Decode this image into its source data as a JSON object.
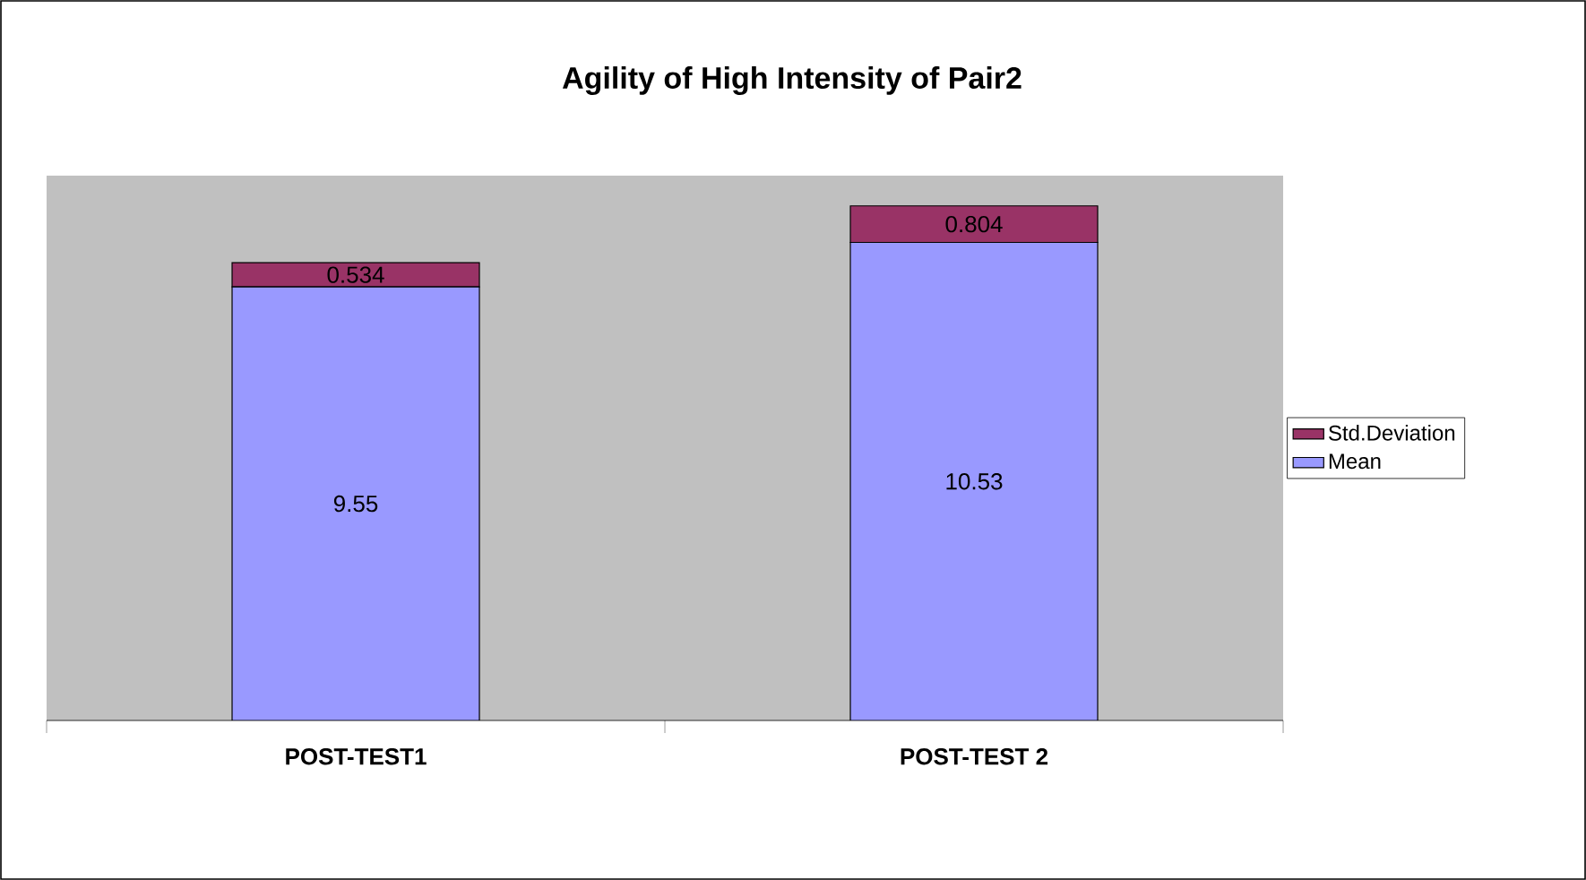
{
  "chart_data": {
    "type": "bar",
    "title": "Agility of High Intensity of Pair2",
    "categories": [
      "POST-TEST1",
      "POST-TEST 2"
    ],
    "stacked": true,
    "series": [
      {
        "name": "Mean",
        "color": "#9999ff",
        "values": [
          9.55,
          10.53
        ]
      },
      {
        "name": "Std.Deviation",
        "color": "#993366",
        "values": [
          0.534,
          0.804
        ]
      }
    ],
    "ylim": [
      0,
      12
    ],
    "tick_labels": "x",
    "data_labels": true,
    "legend": "right"
  }
}
